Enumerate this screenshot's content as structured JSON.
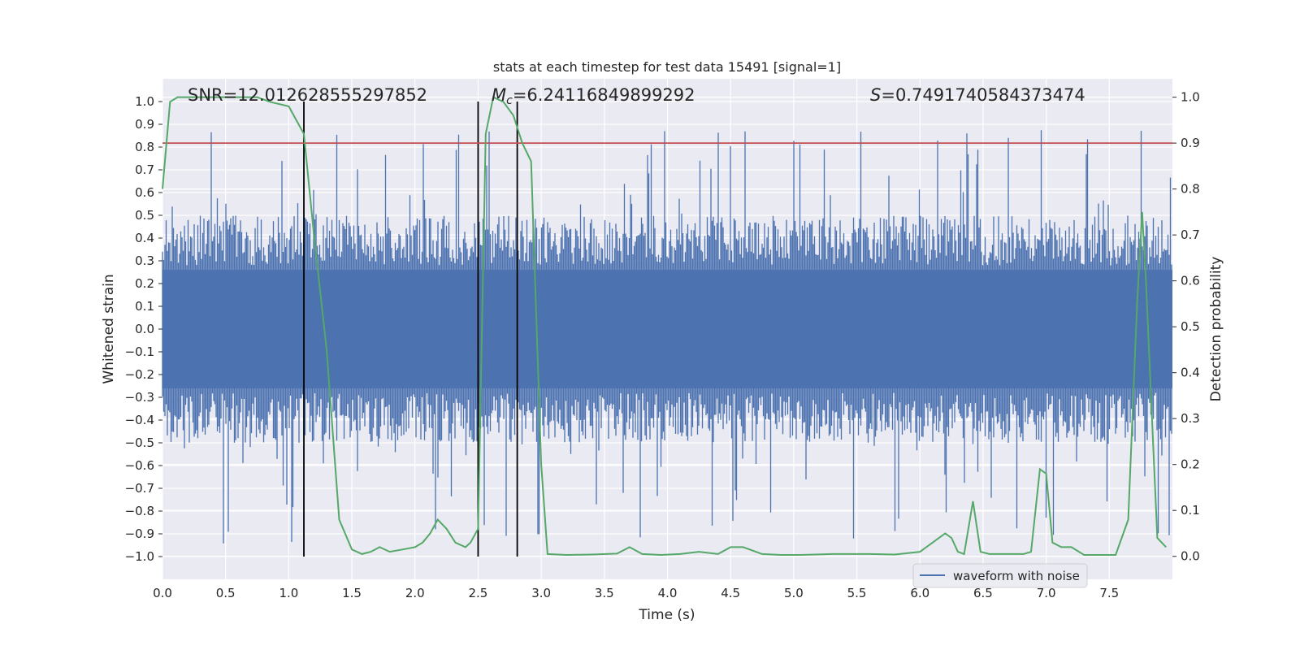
{
  "chart_data": {
    "type": "line",
    "title": "stats at each timestep for test data 15491 [signal=1]",
    "xlabel": "Time (s)",
    "ylabel": "Whitened strain",
    "ylabel_right": "Detection probability",
    "xlim": [
      0,
      8
    ],
    "ylim": [
      -1.1,
      1.1
    ],
    "ylim_right": [
      -0.05,
      1.04
    ],
    "x_ticks": [
      "0.0",
      "0.5",
      "1.0",
      "1.5",
      "2.0",
      "2.5",
      "3.0",
      "3.5",
      "4.0",
      "4.5",
      "5.0",
      "5.5",
      "6.0",
      "6.5",
      "7.0",
      "7.5"
    ],
    "y_ticks": [
      "−1.0",
      "−0.9",
      "−0.8",
      "−0.7",
      "−0.6",
      "−0.5",
      "−0.4",
      "−0.3",
      "−0.2",
      "−0.1",
      "0.0",
      "0.1",
      "0.2",
      "0.3",
      "0.4",
      "0.5",
      "0.6",
      "0.7",
      "0.8",
      "0.9",
      "1.0"
    ],
    "y_ticks_right": [
      "0.0",
      "0.1",
      "0.2",
      "0.3",
      "0.4",
      "0.5",
      "0.6",
      "0.7",
      "0.8",
      "0.9",
      "1.0"
    ],
    "annotations": {
      "snr": "SNR=12.012628555297852",
      "mc_symbol": "M",
      "mc_sub": "c",
      "mc_value": "=6.24116849899292",
      "s_symbol": "S",
      "s_value": "=0.7491740584373474"
    },
    "vertical_lines": [
      1.12,
      2.5,
      2.81
    ],
    "threshold_probability": 0.9,
    "legend": {
      "label": "waveform with noise",
      "placement": "lower-right"
    },
    "series": [
      {
        "name": "waveform with noise",
        "color": "#4c72b0",
        "description": "dense noise fill between approx -0.45 and 0.45 with spikes up to 0.9 and down to -1.0"
      },
      {
        "name": "detection probability",
        "color": "#55a868",
        "x": [
          0.0,
          0.06,
          0.12,
          0.2,
          0.3,
          0.45,
          0.6,
          0.75,
          0.85,
          1.0,
          1.06,
          1.12,
          1.2,
          1.3,
          1.4,
          1.5,
          1.58,
          1.65,
          1.72,
          1.8,
          1.9,
          2.0,
          2.06,
          2.12,
          2.18,
          2.25,
          2.32,
          2.4,
          2.44,
          2.5,
          2.56,
          2.62,
          2.7,
          2.78,
          2.85,
          2.92,
          3.0,
          3.05,
          3.2,
          3.4,
          3.6,
          3.7,
          3.8,
          3.95,
          4.1,
          4.25,
          4.4,
          4.5,
          4.6,
          4.75,
          4.9,
          5.05,
          5.3,
          5.6,
          5.8,
          6.0,
          6.1,
          6.2,
          6.25,
          6.3,
          6.35,
          6.42,
          6.48,
          6.55,
          6.65,
          6.75,
          6.82,
          6.88,
          6.95,
          7.0,
          7.05,
          7.12,
          7.2,
          7.3,
          7.45,
          7.55,
          7.65,
          7.72,
          7.76,
          7.79,
          7.83,
          7.88,
          7.95
        ],
        "values": [
          0.8,
          0.99,
          1.0,
          1.0,
          1.0,
          1.0,
          1.0,
          1.0,
          0.99,
          0.98,
          0.95,
          0.92,
          0.7,
          0.45,
          0.08,
          0.015,
          0.005,
          0.01,
          0.02,
          0.01,
          0.015,
          0.02,
          0.03,
          0.05,
          0.08,
          0.06,
          0.03,
          0.02,
          0.03,
          0.06,
          0.92,
          1.0,
          0.99,
          0.96,
          0.9,
          0.86,
          0.2,
          0.005,
          0.003,
          0.004,
          0.006,
          0.02,
          0.005,
          0.003,
          0.005,
          0.01,
          0.005,
          0.02,
          0.02,
          0.005,
          0.003,
          0.003,
          0.005,
          0.005,
          0.004,
          0.01,
          0.03,
          0.05,
          0.04,
          0.01,
          0.005,
          0.12,
          0.01,
          0.005,
          0.005,
          0.005,
          0.005,
          0.01,
          0.19,
          0.18,
          0.03,
          0.02,
          0.02,
          0.003,
          0.003,
          0.003,
          0.08,
          0.55,
          0.75,
          0.6,
          0.35,
          0.04,
          0.02
        ]
      },
      {
        "name": "threshold",
        "color": "#c44e52",
        "values": [
          0.9
        ]
      }
    ]
  }
}
